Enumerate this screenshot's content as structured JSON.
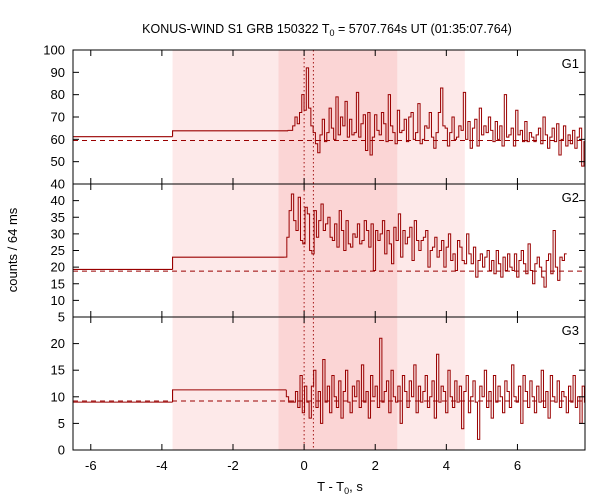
{
  "chart_data": {
    "type": "line",
    "title": {
      "main": "KONUS-WIND S1 GRB 150322 T",
      "sub": "0",
      "rest": " = 5707.764s UT (01:35:07.764)"
    },
    "xlabel": {
      "main": "T - T",
      "sub": "0",
      "rest": ", s"
    },
    "ylabel": "counts / 64 ms",
    "xlim": [
      -6.5,
      7.9
    ],
    "x_ticks": [
      -6,
      -4,
      -2,
      0,
      2,
      4,
      6
    ],
    "colors": {
      "line": "#990000",
      "region_light": "#fde9e9",
      "region_dark": "#fbd5d5",
      "axes": "#000000"
    },
    "shaded_regions": [
      {
        "x0": -3.7,
        "x1": 4.52,
        "shade": "light"
      },
      {
        "x0": -0.72,
        "x1": 2.62,
        "shade": "dark"
      }
    ],
    "vlines": [
      0.0,
      0.26
    ],
    "panels": [
      {
        "name": "G1",
        "ylim": [
          40,
          100
        ],
        "y_ticks": [
          40,
          50,
          60,
          70,
          80,
          90,
          100
        ],
        "background": 59.5,
        "steps": [
          {
            "x0": -6.5,
            "x1": -3.7,
            "y": 61.2
          },
          {
            "x0": -3.7,
            "x1": -0.45,
            "y": 63.8
          }
        ],
        "series": {
          "start": -0.45,
          "dt": 0.064,
          "values": [
            64,
            64,
            66,
            70,
            67,
            72,
            80,
            73,
            92,
            74,
            66,
            63,
            58,
            54,
            62,
            69,
            59,
            63,
            74,
            65,
            60,
            79,
            62,
            70,
            66,
            77,
            61,
            69,
            62,
            63,
            81,
            61,
            67,
            71,
            55,
            72,
            53,
            61,
            71,
            64,
            62,
            72,
            67,
            59,
            80,
            66,
            63,
            58,
            73,
            63,
            64,
            69,
            59,
            70,
            72,
            60,
            63,
            76,
            58,
            60,
            66,
            65,
            72,
            61,
            56,
            63,
            72,
            83,
            66,
            65,
            57,
            63,
            70,
            60,
            61,
            66,
            64,
            81,
            60,
            68,
            56,
            65,
            69,
            57,
            74,
            62,
            66,
            63,
            70,
            64,
            59,
            68,
            60,
            66,
            57,
            80,
            61,
            62,
            65,
            57,
            73,
            62,
            64,
            59,
            68,
            59,
            63,
            61,
            59,
            62,
            65,
            58,
            70,
            62,
            56,
            61,
            65,
            59,
            67,
            53,
            60,
            66,
            57,
            62,
            58,
            64,
            56,
            61,
            65,
            48,
            59,
            66,
            61,
            54,
            63
          ]
        }
      },
      {
        "name": "G2",
        "ylim": [
          5,
          45
        ],
        "y_ticks": [
          5,
          10,
          15,
          20,
          25,
          30,
          35,
          40
        ],
        "background": 18.8,
        "steps": [
          {
            "x0": -6.5,
            "x1": -3.7,
            "y": 19.3
          },
          {
            "x0": -3.7,
            "x1": -0.55,
            "y": 23.0
          }
        ],
        "series": {
          "start": -0.55,
          "dt": 0.064,
          "values": [
            23,
            29,
            37,
            42,
            34,
            31,
            41,
            28,
            27,
            38,
            36,
            25,
            24,
            37,
            29,
            34,
            39,
            31,
            33,
            35,
            29,
            28,
            33,
            26,
            37,
            31,
            25,
            34,
            27,
            26,
            30,
            29,
            33,
            27,
            28,
            34,
            31,
            26,
            33,
            19,
            31,
            28,
            30,
            34,
            24,
            31,
            27,
            21,
            32,
            28,
            36,
            23,
            31,
            27,
            29,
            32,
            22,
            34,
            28,
            25,
            28,
            29,
            31,
            20,
            25,
            26,
            29,
            23,
            25,
            28,
            20,
            26,
            30,
            22,
            24,
            19,
            28,
            26,
            22,
            21,
            30,
            24,
            21,
            26,
            17,
            22,
            24,
            20,
            23,
            25,
            19,
            22,
            18,
            25,
            21,
            17,
            23,
            19,
            24,
            20,
            19,
            24,
            17,
            22,
            25,
            21,
            18,
            27,
            19,
            15,
            21,
            23,
            20,
            17,
            14,
            22,
            24,
            18,
            31,
            20,
            16,
            23,
            22,
            24
          ]
        }
      },
      {
        "name": "G3",
        "ylim": [
          0,
          25
        ],
        "y_ticks": [
          0,
          5,
          10,
          15,
          20
        ],
        "background": 9.2,
        "steps": [
          {
            "x0": -6.5,
            "x1": -3.7,
            "y": 9.0
          },
          {
            "x0": -3.7,
            "x1": -0.5,
            "y": 11.3
          }
        ],
        "series": {
          "start": -0.5,
          "dt": 0.064,
          "values": [
            10,
            9,
            9,
            9,
            11,
            8,
            14,
            7,
            12,
            9,
            6,
            12,
            15,
            8,
            11,
            5,
            17,
            9,
            12,
            7,
            14,
            10,
            8,
            13,
            6,
            11,
            15,
            9,
            7,
            12,
            10,
            13,
            8,
            16,
            9,
            11,
            6,
            14,
            10,
            12,
            8,
            21,
            9,
            11,
            13,
            7,
            15,
            10,
            9,
            12,
            5,
            14,
            11,
            8,
            13,
            10,
            16,
            7,
            12,
            9,
            11,
            14,
            8,
            10,
            13,
            6,
            18,
            9,
            12,
            11,
            7,
            15,
            10,
            8,
            13,
            9,
            12,
            4,
            11,
            14,
            7,
            10,
            13,
            9,
            2,
            12,
            10,
            15,
            8,
            11,
            6,
            14,
            9,
            12,
            10,
            7,
            13,
            11,
            8,
            16,
            10,
            9,
            12,
            5,
            14,
            11,
            8,
            13,
            10,
            7,
            12,
            9,
            15,
            8,
            11,
            6,
            14,
            10,
            9,
            13,
            8,
            11,
            10,
            7,
            12,
            9,
            14,
            8,
            10,
            5,
            12,
            9,
            11,
            7,
            13,
            10
          ]
        }
      }
    ]
  }
}
